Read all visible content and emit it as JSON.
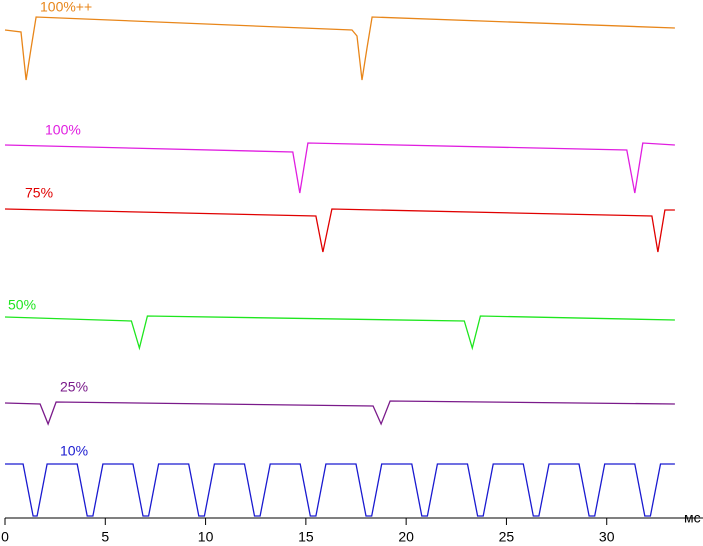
{
  "chart_data": {
    "type": "line",
    "x_label": "мс",
    "xlim": [
      0,
      34.8
    ],
    "xticks": [
      0,
      5,
      10,
      15,
      20,
      25,
      30
    ],
    "ylim": [
      0,
      518
    ],
    "series": [
      {
        "name": "100%++",
        "color": "#e8861a",
        "x": [
          0,
          0.8,
          1.05,
          1.3,
          1.55,
          17.3,
          17.55,
          17.8,
          18.05,
          18.3,
          33.4
        ],
        "values": [
          488,
          486,
          438,
          470,
          501,
          488,
          482,
          438,
          470,
          501,
          490
        ]
      },
      {
        "name": "100%",
        "color": "#e01ee0",
        "x": [
          0,
          14.35,
          14.7,
          15.1,
          31.0,
          31.4,
          31.8,
          33.4
        ],
        "values": [
          373,
          366,
          325,
          375,
          368,
          325,
          375,
          373
        ]
      },
      {
        "name": "75%",
        "color": "#e00000",
        "x": [
          0,
          15.5,
          15.85,
          16.3,
          32.25,
          32.55,
          32.9,
          33.4
        ],
        "values": [
          309,
          302,
          266,
          309,
          302,
          266,
          308,
          308
        ]
      },
      {
        "name": "50%",
        "color": "#1ee61e",
        "x": [
          0,
          6.3,
          6.7,
          7.1,
          22.9,
          23.3,
          23.7,
          33.4
        ],
        "values": [
          201,
          197,
          170,
          202,
          197,
          170,
          202,
          198
        ]
      },
      {
        "name": "25%",
        "color": "#7a1a8a",
        "x": [
          0,
          1.75,
          2.15,
          2.55,
          18.35,
          18.75,
          19.2,
          33.4
        ],
        "values": [
          115,
          114,
          94,
          116,
          112,
          94,
          117,
          114
        ]
      },
      {
        "name": "10%",
        "color": "#1a1ad0",
        "x": [
          0,
          0.9,
          1.4,
          1.6,
          2.1,
          3.6,
          4.1,
          4.38,
          4.88,
          6.38,
          6.88,
          7.16,
          7.66,
          9.16,
          9.66,
          9.94,
          10.44,
          11.94,
          12.44,
          12.72,
          13.22,
          14.72,
          15.22,
          15.5,
          16.0,
          17.5,
          18.0,
          18.28,
          18.78,
          20.28,
          20.78,
          21.06,
          21.56,
          23.06,
          23.56,
          23.84,
          24.34,
          25.84,
          26.34,
          26.62,
          27.12,
          28.62,
          29.12,
          29.4,
          29.9,
          31.4,
          31.9,
          32.18,
          32.68,
          33.4
        ],
        "values": [
          54,
          54,
          2,
          2,
          54,
          54,
          2,
          2,
          54,
          54,
          2,
          2,
          54,
          54,
          2,
          2,
          54,
          54,
          2,
          2,
          54,
          54,
          2,
          2,
          54,
          54,
          2,
          2,
          54,
          54,
          2,
          2,
          54,
          54,
          2,
          2,
          54,
          54,
          2,
          2,
          54,
          54,
          2,
          2,
          54,
          54,
          2,
          2,
          54,
          54
        ]
      }
    ]
  }
}
